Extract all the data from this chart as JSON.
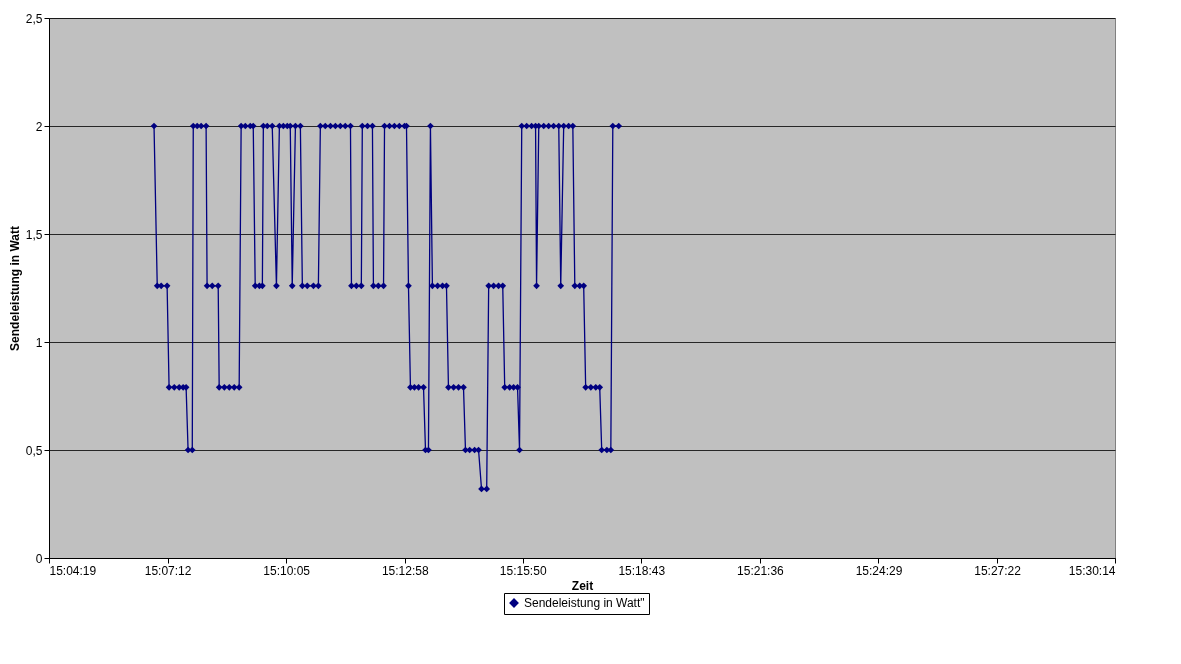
{
  "chart_data": {
    "type": "line",
    "xlabel": "Zeit",
    "ylabel": "Sendeleistung in Watt",
    "x": [
      15.1145,
      15.1158,
      15.1174,
      15.1198,
      15.1206,
      15.1227,
      15.1247,
      15.1263,
      15.1275,
      15.1283,
      15.13,
      15.1304,
      15.132,
      15.1336,
      15.1356,
      15.136,
      15.1381,
      15.1405,
      15.1409,
      15.143,
      15.145,
      15.147,
      15.149,
      15.1498,
      15.1515,
      15.1535,
      15.1547,
      15.1555,
      15.1572,
      15.1584,
      15.1588,
      15.1604,
      15.1624,
      15.1641,
      15.1653,
      15.1669,
      15.1685,
      15.1697,
      15.1705,
      15.1718,
      15.1738,
      15.1746,
      15.1766,
      15.1791,
      15.1811,
      15.1819,
      15.1839,
      15.186,
      15.188,
      15.19,
      15.192,
      15.1941,
      15.1945,
      15.1965,
      15.1985,
      15.1989,
      15.201,
      15.203,
      15.2034,
      15.2054,
      15.2075,
      15.2079,
      15.2099,
      15.2119,
      15.2139,
      15.216,
      15.2168,
      15.2176,
      15.2184,
      15.22,
      15.2217,
      15.2237,
      15.2245,
      15.2257,
      15.2265,
      15.2273,
      15.2294,
      15.2314,
      15.233,
      15.2338,
      15.2359,
      15.2379,
      15.2399,
      15.2407,
      15.2424,
      15.2444,
      15.246,
      15.2472,
      15.2493,
      15.2501,
      15.2521,
      15.2541,
      15.2558,
      15.2566,
      15.2586,
      15.2602,
      15.2618,
      15.2626,
      15.2635,
      15.2655,
      15.2675,
      15.2691,
      15.2695,
      15.2704,
      15.2724,
      15.2744,
      15.2764,
      15.2785,
      15.2793,
      15.2805,
      15.2825,
      15.2842,
      15.285,
      15.287,
      15.2886,
      15.2894,
      15.2915,
      15.2935,
      15.2951,
      15.2959,
      15.298,
      15.2996,
      15.3004,
      15.3028
    ],
    "series": [
      {
        "name": "Sendeleistung in Watt\"",
        "color": "#000080",
        "values": [
          2,
          1.26,
          1.26,
          1.26,
          0.79,
          0.79,
          0.79,
          0.79,
          0.79,
          0.5,
          0.5,
          2,
          2,
          2,
          2,
          1.26,
          1.26,
          1.26,
          0.79,
          0.79,
          0.79,
          0.79,
          0.79,
          2,
          2,
          2,
          2,
          1.26,
          1.26,
          1.26,
          2,
          2,
          2,
          1.26,
          2,
          2,
          2,
          2,
          1.26,
          2,
          2,
          1.26,
          1.26,
          1.26,
          1.26,
          2,
          2,
          2,
          2,
          2,
          2,
          2,
          1.26,
          1.26,
          1.26,
          2,
          2,
          2,
          1.26,
          1.26,
          1.26,
          2,
          2,
          2,
          2,
          2,
          2,
          1.26,
          0.79,
          0.79,
          0.79,
          0.79,
          0.5,
          0.5,
          2,
          1.26,
          1.26,
          1.26,
          1.26,
          0.79,
          0.79,
          0.79,
          0.79,
          0.5,
          0.5,
          0.5,
          0.5,
          0.32,
          0.32,
          1.26,
          1.26,
          1.26,
          1.26,
          0.79,
          0.79,
          0.79,
          0.79,
          0.5,
          2,
          2,
          2,
          2,
          1.26,
          2,
          2,
          2,
          2,
          2,
          1.26,
          2,
          2,
          2,
          1.26,
          1.26,
          1.26,
          0.79,
          0.79,
          0.79,
          0.79,
          0.5,
          0.5,
          0.5,
          2,
          2
        ]
      }
    ],
    "xlim": [
      15.071944,
      15.503889
    ],
    "xticks": [
      {
        "value": 15.071944,
        "label": "15:04:19"
      },
      {
        "value": 15.12,
        "label": "15:07:12"
      },
      {
        "value": 15.168056,
        "label": "15:10:05"
      },
      {
        "value": 15.216111,
        "label": "15:12:58"
      },
      {
        "value": 15.263889,
        "label": "15:15:50"
      },
      {
        "value": 15.311944,
        "label": "15:18:43"
      },
      {
        "value": 15.36,
        "label": "15:21:36"
      },
      {
        "value": 15.408056,
        "label": "15:24:29"
      },
      {
        "value": 15.456111,
        "label": "15:27:22"
      },
      {
        "value": 15.503889,
        "label": "15:30:14"
      }
    ],
    "ylim": [
      0,
      2.5
    ],
    "yticks": [
      0,
      {
        "value": 0.5,
        "label": "0,5"
      },
      1,
      {
        "value": 1.5,
        "label": "1,5"
      },
      2,
      {
        "value": 2.5,
        "label": "2,5"
      }
    ],
    "grid": "y",
    "legend": "bottom",
    "marker": "diamond",
    "line_style": "solid"
  }
}
